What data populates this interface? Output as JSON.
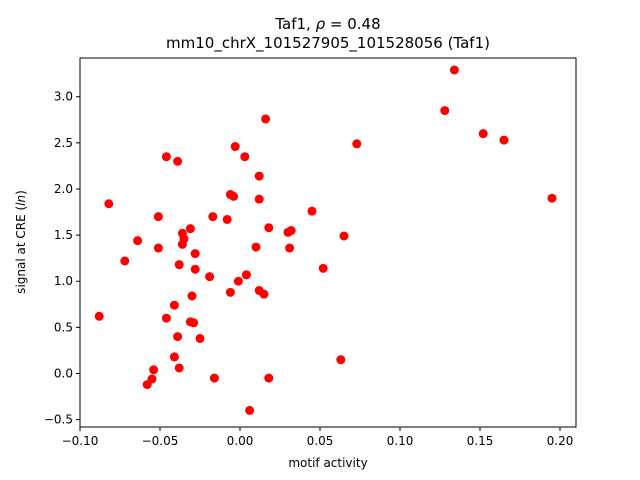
{
  "chart_data": {
    "type": "scatter",
    "title_line1_prefix": "Taf1, ",
    "title_line1_rho": "ρ",
    "title_line1_suffix": " = 0.48",
    "title_line2": "mm10_chrX_101527905_101528056 (Taf1)",
    "xlabel": "motif activity",
    "ylabel_prefix": "signal at CRE (",
    "ylabel_italic": "ln",
    "ylabel_suffix": ")",
    "xlim": [
      -0.1,
      0.21
    ],
    "ylim": [
      -0.58,
      3.42
    ],
    "xticks": [
      -0.1,
      -0.05,
      0.0,
      0.05,
      0.1,
      0.15,
      0.2
    ],
    "xtick_labels": [
      "−0.10",
      "−0.05",
      "0.00",
      "0.05",
      "0.10",
      "0.15",
      "0.20"
    ],
    "yticks": [
      -0.5,
      0.0,
      0.5,
      1.0,
      1.5,
      2.0,
      2.5,
      3.0
    ],
    "ytick_labels": [
      "−0.5",
      "0.0",
      "0.5",
      "1.0",
      "1.5",
      "2.0",
      "2.5",
      "3.0"
    ],
    "marker_color": "#ff0000",
    "points": [
      {
        "x": -0.088,
        "y": 0.62
      },
      {
        "x": -0.082,
        "y": 1.84
      },
      {
        "x": -0.072,
        "y": 1.22
      },
      {
        "x": -0.064,
        "y": 1.44
      },
      {
        "x": -0.058,
        "y": -0.12
      },
      {
        "x": -0.055,
        "y": -0.06
      },
      {
        "x": -0.054,
        "y": 0.04
      },
      {
        "x": -0.051,
        "y": 1.7
      },
      {
        "x": -0.051,
        "y": 1.36
      },
      {
        "x": -0.046,
        "y": 2.35
      },
      {
        "x": -0.046,
        "y": 0.6
      },
      {
        "x": -0.041,
        "y": 0.18
      },
      {
        "x": -0.041,
        "y": 0.74
      },
      {
        "x": -0.039,
        "y": 2.3
      },
      {
        "x": -0.039,
        "y": 0.4
      },
      {
        "x": -0.038,
        "y": 1.18
      },
      {
        "x": -0.038,
        "y": 0.06
      },
      {
        "x": -0.036,
        "y": 1.52
      },
      {
        "x": -0.036,
        "y": 1.4
      },
      {
        "x": -0.035,
        "y": 1.46
      },
      {
        "x": -0.031,
        "y": 1.57
      },
      {
        "x": -0.031,
        "y": 0.56
      },
      {
        "x": -0.03,
        "y": 0.84
      },
      {
        "x": -0.029,
        "y": 0.55
      },
      {
        "x": -0.028,
        "y": 1.13
      },
      {
        "x": -0.028,
        "y": 1.3
      },
      {
        "x": -0.025,
        "y": 0.38
      },
      {
        "x": -0.019,
        "y": 1.05
      },
      {
        "x": -0.017,
        "y": 1.7
      },
      {
        "x": -0.016,
        "y": -0.05
      },
      {
        "x": -0.008,
        "y": 1.67
      },
      {
        "x": -0.006,
        "y": 1.94
      },
      {
        "x": -0.006,
        "y": 0.88
      },
      {
        "x": -0.004,
        "y": 1.92
      },
      {
        "x": -0.003,
        "y": 2.46
      },
      {
        "x": -0.001,
        "y": 1.0
      },
      {
        "x": 0.003,
        "y": 2.35
      },
      {
        "x": 0.004,
        "y": 1.07
      },
      {
        "x": 0.006,
        "y": -0.4
      },
      {
        "x": 0.01,
        "y": 1.37
      },
      {
        "x": 0.012,
        "y": 1.89
      },
      {
        "x": 0.012,
        "y": 2.14
      },
      {
        "x": 0.012,
        "y": 0.9
      },
      {
        "x": 0.015,
        "y": 0.86
      },
      {
        "x": 0.016,
        "y": 2.76
      },
      {
        "x": 0.018,
        "y": -0.05
      },
      {
        "x": 0.018,
        "y": 1.58
      },
      {
        "x": 0.03,
        "y": 1.53
      },
      {
        "x": 0.031,
        "y": 1.36
      },
      {
        "x": 0.032,
        "y": 1.55
      },
      {
        "x": 0.045,
        "y": 1.76
      },
      {
        "x": 0.052,
        "y": 1.14
      },
      {
        "x": 0.063,
        "y": 0.15
      },
      {
        "x": 0.065,
        "y": 1.49
      },
      {
        "x": 0.073,
        "y": 2.49
      },
      {
        "x": 0.128,
        "y": 2.85
      },
      {
        "x": 0.134,
        "y": 3.29
      },
      {
        "x": 0.152,
        "y": 2.6
      },
      {
        "x": 0.165,
        "y": 2.53
      },
      {
        "x": 0.195,
        "y": 1.9
      }
    ]
  }
}
